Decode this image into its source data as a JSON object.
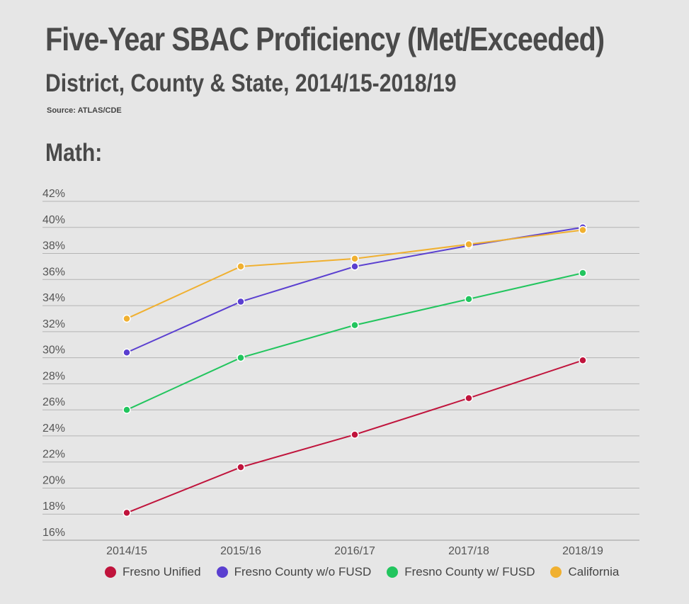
{
  "header": {
    "title": "Five-Year SBAC Proficiency (Met/Exceeded)",
    "subtitle": "District, County & State, 2014/15-2018/19",
    "source": "Source: ATLAS/CDE",
    "section": "Math:"
  },
  "chart_data": {
    "type": "line",
    "title": "Five-Year SBAC Proficiency (Met/Exceeded)",
    "categories": [
      "2014/15",
      "2015/16",
      "2016/17",
      "2017/18",
      "2018/19"
    ],
    "ylim": [
      16,
      42
    ],
    "yticks": [
      42,
      40,
      38,
      36,
      34,
      32,
      30,
      28,
      26,
      24,
      22,
      20,
      18,
      16
    ],
    "ytick_labels": [
      "42%",
      "40%",
      "38%",
      "36%",
      "34%",
      "32%",
      "30%",
      "28%",
      "26%",
      "24%",
      "22%",
      "20%",
      "18%",
      "16%"
    ],
    "grid": true,
    "legend_position": "bottom",
    "series": [
      {
        "name": "Fresno Unified",
        "color": "#c0143c",
        "values": [
          18.1,
          21.6,
          24.1,
          26.9,
          29.8
        ]
      },
      {
        "name": "Fresno County w/o FUSD",
        "color": "#5a3fd0",
        "values": [
          30.4,
          34.3,
          37.0,
          38.6,
          40.0
        ]
      },
      {
        "name": "Fresno County w/ FUSD",
        "color": "#22c55e",
        "values": [
          26.0,
          30.0,
          32.5,
          34.5,
          36.5
        ]
      },
      {
        "name": "California",
        "color": "#f0b030",
        "values": [
          33.0,
          37.0,
          37.6,
          38.7,
          39.8
        ]
      }
    ]
  }
}
